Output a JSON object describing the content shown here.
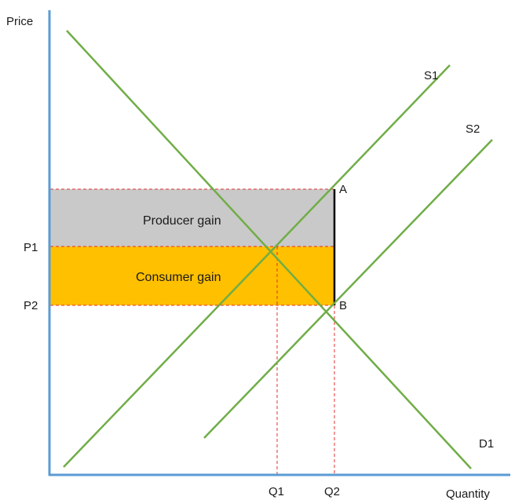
{
  "axes": {
    "y_label": "Price",
    "x_label": "Quantity",
    "color": "#5b9bd5"
  },
  "curves": {
    "s1_label": "S1",
    "s2_label": "S2",
    "d1_label": "D1",
    "color": "#70ad47"
  },
  "areas": {
    "producer_gain_label": "Producer gain",
    "producer_gain_color": "#c9c9c9",
    "consumer_gain_label": "Consumer gain",
    "consumer_gain_color": "#ffc000"
  },
  "points": {
    "a_label": "A",
    "b_label": "B"
  },
  "price_levels": {
    "p1_label": "P1",
    "p2_label": "P2"
  },
  "quantity_levels": {
    "q1_label": "Q1",
    "q2_label": "Q2"
  },
  "guide_color": "#e03030"
}
